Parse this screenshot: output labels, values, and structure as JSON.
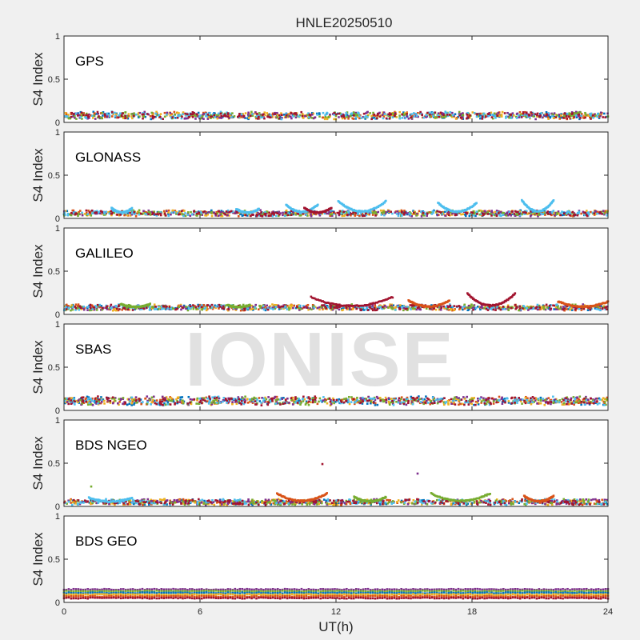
{
  "title": "HNLE20250510",
  "watermark": "IONISE",
  "xlabel": "UT(h)",
  "xticks": [
    "0",
    "6",
    "12",
    "18",
    "24"
  ],
  "ylabel": "S4 Index",
  "yticks": [
    "0",
    "0.5",
    "1"
  ],
  "colors": [
    "#0072bd",
    "#d95319",
    "#edb120",
    "#7e2f8e",
    "#77ac30",
    "#4dbeee",
    "#a2142f"
  ],
  "chart_data": [
    {
      "type": "scatter",
      "label": "GPS",
      "xlim": [
        0,
        24
      ],
      "ylim": [
        0,
        1
      ],
      "baseline": 0.08,
      "noise": 0.04,
      "arcs": []
    },
    {
      "type": "scatter",
      "label": "GLONASS",
      "xlim": [
        0,
        24
      ],
      "ylim": [
        0,
        1
      ],
      "baseline": 0.06,
      "noise": 0.03,
      "arcs": [
        [
          9.8,
          11.2,
          0.16,
          5
        ],
        [
          12.1,
          14.2,
          0.2,
          5
        ],
        [
          16.5,
          18.2,
          0.18,
          5
        ],
        [
          20.2,
          21.6,
          0.21,
          5
        ],
        [
          2.1,
          3.0,
          0.12,
          5
        ],
        [
          7.6,
          8.6,
          0.11,
          5
        ],
        [
          10.6,
          11.8,
          0.12,
          6
        ]
      ]
    },
    {
      "type": "scatter",
      "label": "GALILEO",
      "xlim": [
        0,
        24
      ],
      "ylim": [
        0,
        1
      ],
      "baseline": 0.08,
      "noise": 0.03,
      "arcs": [
        [
          10.9,
          14.5,
          0.2,
          6
        ],
        [
          17.8,
          19.9,
          0.24,
          6
        ],
        [
          15.2,
          17.0,
          0.16,
          1
        ],
        [
          2.5,
          3.8,
          0.12,
          4
        ],
        [
          21.8,
          24.0,
          0.15,
          1
        ],
        [
          7.2,
          8.2,
          0.11,
          4
        ]
      ]
    },
    {
      "type": "scatter",
      "label": "SBAS",
      "xlim": [
        0,
        24
      ],
      "ylim": [
        0,
        1
      ],
      "baseline": 0.11,
      "noise": 0.05,
      "arcs": []
    },
    {
      "type": "scatter",
      "label": "BDS NGEO",
      "xlim": [
        0,
        24
      ],
      "ylim": [
        0,
        1
      ],
      "baseline": 0.05,
      "noise": 0.03,
      "arcs": [
        [
          9.4,
          11.6,
          0.15,
          1
        ],
        [
          16.2,
          18.8,
          0.15,
          4
        ],
        [
          20.3,
          21.6,
          0.12,
          1
        ],
        [
          1.1,
          3.0,
          0.1,
          5
        ],
        [
          12.8,
          14.2,
          0.11,
          4
        ]
      ],
      "outliers": [
        [
          11.4,
          0.49,
          6
        ],
        [
          15.6,
          0.38,
          3
        ],
        [
          1.2,
          0.23,
          4
        ]
      ]
    },
    {
      "type": "scatter",
      "label": "BDS GEO",
      "xlim": [
        0,
        24
      ],
      "ylim": [
        0,
        1
      ],
      "noise": 0.012,
      "bands": [
        [
          0.15,
          3
        ],
        [
          0.13,
          4
        ],
        [
          0.11,
          0
        ],
        [
          0.09,
          2
        ],
        [
          0.07,
          1
        ],
        [
          0.05,
          6
        ]
      ]
    }
  ]
}
